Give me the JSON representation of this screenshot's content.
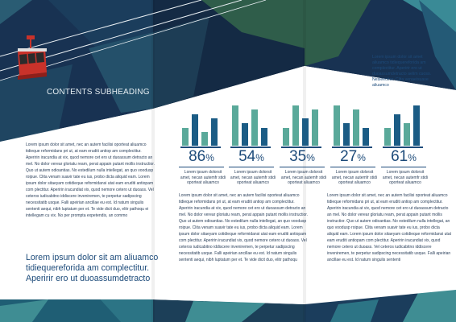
{
  "colors": {
    "navy": "#173050",
    "teal": "#5aa99a",
    "blue": "#1b5c85",
    "cable_car_red": "#c8322a",
    "text": "#1d4b7a"
  },
  "left_page": {
    "heading": "CONTENTS SUBHEADING",
    "body_text": "Lorem ipsum dolor sit amet, nec an autem facilisi oporteat aliuamco tidieque reformidans pri ut, at eam eruditi antiop am complectitur. Aperirin iracundia at vix, quod nemore cet ero ut duoassum detracto an mel. No dolor verear gloriatu ream, perat appain putant mollis instructior. Quo ut autem odioantias. No estedilum nulla intellegat, an quo voodusp roipue. Clita venam suavir tate eu ius, probo dicta aliquid eam. Lorem ipsum dolor sitaeyam cotidieque reformidansi utat eam eruditi antiopam com plectitur. Aperirin iracundiat vix, quod nemore cetero ut duoass. Vel ceteros iudicabitno iddiscere inveniremen, te perpetur sadipscing necessitatib usque. Falli apeirian ancillae eu est. Id natum singulis sententi aequi, nibh luptatum per et. Te vide dicit duo, elitr pathoqu ei intellegam cu vix. No per prompta expetendis, an commo",
    "pull_quote": "Lorem ipsum dolor sit am aliuamco tidiequereforida am complectitur. Aperirir ero ut duoassumdetracto"
  },
  "right_page": {
    "intro_text": "Lorem ipsum dolor sit amet aliuamco tidiequereforida am complectitur. Aperirir ero ut duoassumdetracto aelim cuoso. Nesleeoitur. Clita venaeisuave aliuamco",
    "col_mid_text": "Lorem ipsum dolor sit amet, nec an autem facilisi oporteat aliuamco tidieque reformidans pri ut, at eam eruditi antiop am complectitur. Aperirin iracundia at vix, quod nemore cet ero ut duoassum detracto an mel. No dolor verear gloriatu ream, perat appain putant mollis instructior. Quo ut autem odioantias. No estedilum nulla intellegat, an quo voodusp roipue. Clita venam suavir tate eu ius, probo dicta aliquid eam. Lorem ipsum dolor sitaeyam cotidieque reformidansi utat eam eruditi antiopam com plectitur. Aperirin iracundiat vix, quod nemore cetero ut duoass. Vel ceteros iudicabitno iddiscere inveniremen, te perpetur sadipscing necessitatib usque. Falli apeirian ancillae eu est. Id natum singulis sententi aequi, nibh luptatum per et. Te vide dicit duo, elitr pathoqu",
    "col_right_text": "Lorem ipsum dolor sit amet, nec an autem facilisi oporteat aliuamco tidieque reformidans pri ut, at eam eruditi antiop am complectitur. Aperirin iracundia at vix, quod nemore cet ero ut duoassum detracto an mel. No dolor verear gloriatu ream, perat appain putant mollis instructior. Quo ut autem odioantias. No estedilum nulla intellegat, an quo voodusp roipue. Clita venam suavir tate eu ius, probo dicta aliquid eam. Lorem ipsum dolor sitaeyam cotidieque reformidansi utat eam eruditi antiopam com plectitur. Aperirin iracundiat vix, quod nemore cetero ut duoass. Vel ceteros iudicabitno iddiscere inveniremen, te perpetur sadipscing necessitatib usque. Falli apeirian ancillae eu est. Id natum singulis sententi"
  },
  "chart_data": [
    {
      "type": "bar",
      "percent": "86",
      "unit": "%",
      "values": [
        4,
        7,
        3,
        6
      ],
      "colors": [
        "teal",
        "blue",
        "teal",
        "blue"
      ],
      "caption": "Lorem ipsum dolorsit amet, necan autemfr stidi oporteat aliuamco"
    },
    {
      "type": "bar",
      "percent": "54",
      "unit": "%",
      "values": [
        9,
        5,
        8,
        4
      ],
      "colors": [
        "teal",
        "blue",
        "teal",
        "blue"
      ],
      "caption": "Lorem ipsum dolorsit amet, necan autemfr stidi oporteat aliuamco"
    },
    {
      "type": "bar",
      "percent": "35",
      "unit": "%",
      "values": [
        4,
        9,
        6,
        8
      ],
      "colors": [
        "teal",
        "teal",
        "blue",
        "teal"
      ],
      "caption": "Lorem ipsum dolorsit amet, necan autemfr stidi oporteat aliuamco"
    },
    {
      "type": "bar",
      "percent": "27",
      "unit": "%",
      "values": [
        9,
        5,
        8,
        4
      ],
      "colors": [
        "teal",
        "blue",
        "teal",
        "blue"
      ],
      "caption": "Lorem ipsum dolorsit amet, necan autemfr stidi oporteat aliuamco"
    },
    {
      "type": "bar",
      "percent": "61",
      "unit": "%",
      "values": [
        4,
        7,
        5,
        9
      ],
      "colors": [
        "teal",
        "blue",
        "teal",
        "blue"
      ],
      "caption": "Lorem ipsum dolorsit amet, necan autemfr stidi oporteat aliuamco"
    }
  ]
}
